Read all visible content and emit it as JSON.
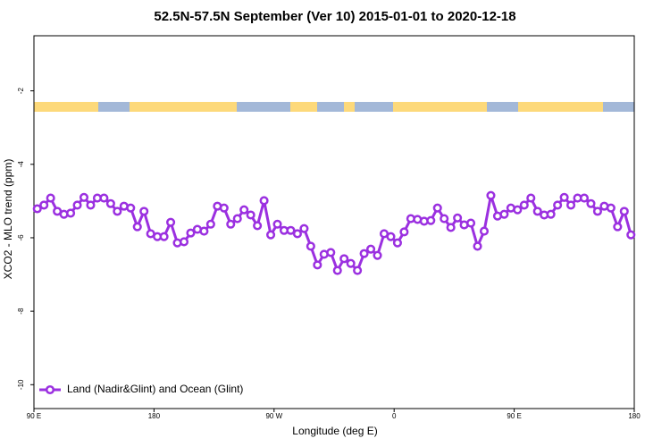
{
  "chart_data": {
    "type": "line",
    "title": "52.5N-57.5N September (Ver 10)   2015-01-01 to 2020-12-18",
    "x_label": "Longitude (deg E)",
    "y_label": "XCO2 - MLO trend (ppm)",
    "xlim": [
      90,
      540
    ],
    "xticks": [
      {
        "value": 90,
        "label": "90 E"
      },
      {
        "value": 180,
        "label": "180"
      },
      {
        "value": 270,
        "label": "90 W"
      },
      {
        "value": 360,
        "label": "0"
      },
      {
        "value": 450,
        "label": "90 E"
      },
      {
        "value": 540,
        "label": "180"
      }
    ],
    "ylim": [
      -10.65,
      -0.5
    ],
    "yticks": [
      -10,
      -8,
      -6,
      -4,
      -2
    ],
    "legend": "bottom-left",
    "x": [
      92.5,
      97.5,
      102.5,
      107.5,
      112.5,
      117.5,
      122.5,
      127.5,
      132.5,
      137.5,
      142.5,
      147.5,
      152.5,
      157.5,
      162.5,
      167.5,
      172.5,
      177.5,
      182.5,
      187.5,
      192.5,
      197.5,
      202.5,
      207.5,
      212.5,
      217.5,
      222.5,
      227.5,
      232.5,
      237.5,
      242.5,
      247.5,
      252.5,
      257.5,
      262.5,
      267.5,
      272.5,
      277.5,
      282.5,
      287.5,
      292.5,
      297.5,
      302.5,
      307.5,
      312.5,
      317.5,
      322.5,
      327.5,
      332.5,
      337.5,
      342.5,
      347.5,
      352.5,
      357.5,
      362.5,
      367.5,
      372.5,
      377.5,
      382.5,
      387.5,
      392.5,
      397.5,
      402.5,
      407.5,
      412.5,
      417.5,
      422.5,
      427.5,
      432.5,
      437.5,
      442.5,
      447.5,
      452.5,
      457.5,
      462.5,
      467.5,
      472.5,
      477.5,
      482.5,
      487.5,
      492.5,
      497.5,
      502.5,
      507.5,
      512.5,
      517.5,
      522.5,
      527.5,
      532.5,
      537.5
    ],
    "series": [
      {
        "name": "Land (Nadir&Glint) and Ocean (Glint)",
        "color": "#9b30e0",
        "values": [
          -5.21,
          -5.11,
          -4.92,
          -5.28,
          -5.36,
          -5.33,
          -5.11,
          -4.9,
          -5.11,
          -4.92,
          -4.92,
          -5.07,
          -5.28,
          -5.14,
          -5.19,
          -5.7,
          -5.28,
          -5.89,
          -5.97,
          -5.97,
          -5.58,
          -6.14,
          -6.11,
          -5.87,
          -5.77,
          -5.82,
          -5.63,
          -5.14,
          -5.19,
          -5.63,
          -5.48,
          -5.24,
          -5.38,
          -5.67,
          -4.99,
          -5.92,
          -5.63,
          -5.8,
          -5.8,
          -5.89,
          -5.75,
          -6.23,
          -6.74,
          -6.45,
          -6.4,
          -6.89,
          -6.57,
          -6.7,
          -6.89,
          -6.43,
          -6.31,
          -6.48,
          -5.89,
          -5.97,
          -6.14,
          -5.84,
          -5.48,
          -5.5,
          -5.55,
          -5.53,
          -5.19,
          -5.48,
          -5.72,
          -5.46,
          -5.65,
          -5.6,
          -6.23,
          -5.82,
          -4.85,
          -5.41,
          -5.36,
          -5.19,
          -5.24,
          -5.11,
          -4.92,
          -5.28,
          -5.38,
          -5.36,
          -5.11,
          -4.9,
          -5.11,
          -4.92,
          -4.92,
          -5.07,
          -5.28,
          -5.14,
          -5.19,
          -5.7,
          -5.28,
          -5.92
        ]
      }
    ]
  }
}
